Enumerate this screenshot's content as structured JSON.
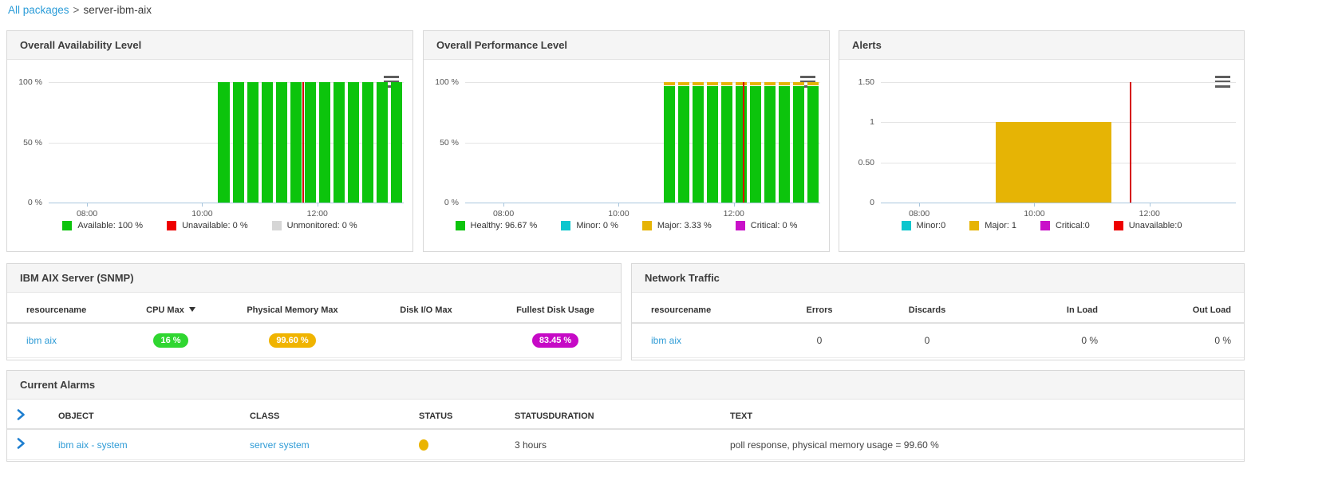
{
  "breadcrumb": {
    "link_label": "All packages",
    "separator": ">",
    "current": "server-ibm-aix"
  },
  "panels": {
    "availability": {
      "title": "Overall Availability Level"
    },
    "performance": {
      "title": "Overall Performance Level"
    },
    "alerts": {
      "title": "Alerts"
    },
    "snmp": {
      "title": "IBM AIX Server (SNMP)"
    },
    "network": {
      "title": "Network Traffic"
    },
    "alarms": {
      "title": "Current Alarms"
    }
  },
  "colors": {
    "green": "#0cc40c",
    "red": "#ee0000",
    "gray": "#d6d6d6",
    "gold": "#e6b405",
    "cyan": "#0cc6ce",
    "magenta": "#c911c9",
    "marker_red": "#d50000",
    "link_blue": "#2e9bd6"
  },
  "chart_data": [
    {
      "id": "availability",
      "type": "bar",
      "title": "Overall Availability Level",
      "x_axis": {
        "range": [
          "07:20",
          "13:30"
        ],
        "ticks": [
          "08:00",
          "10:00",
          "12:00"
        ]
      },
      "y_axis": {
        "range": [
          0,
          100
        ],
        "ticks": [
          {
            "value": 0,
            "label": "0 %"
          },
          {
            "value": 50,
            "label": "50 %"
          },
          {
            "value": 100,
            "label": "100 %"
          }
        ]
      },
      "bar_interval_minutes": 15,
      "bar_times": [
        "10:15",
        "10:30",
        "10:45",
        "11:00",
        "11:15",
        "11:30",
        "11:45",
        "12:00",
        "12:15",
        "12:30",
        "12:45",
        "13:00",
        "13:15"
      ],
      "series": [
        {
          "name": "Available",
          "color": "#0cc40c",
          "values": [
            100,
            100,
            100,
            100,
            100,
            100,
            100,
            100,
            100,
            100,
            100,
            100,
            100
          ]
        }
      ],
      "marker_time": "11:45",
      "marker_color": "#d50000",
      "legend": [
        {
          "label": "Available: 100 %",
          "color": "#0cc40c"
        },
        {
          "label": "Unavailable: 0 %",
          "color": "#ee0000"
        },
        {
          "label": "Unmonitored: 0 %",
          "color": "#d6d6d6"
        }
      ]
    },
    {
      "id": "performance",
      "type": "stacked-bar",
      "title": "Overall Performance Level",
      "x_axis": {
        "range": [
          "07:20",
          "13:30"
        ],
        "ticks": [
          "08:00",
          "10:00",
          "12:00"
        ]
      },
      "y_axis": {
        "range": [
          0,
          100
        ],
        "ticks": [
          {
            "value": 0,
            "label": "0 %"
          },
          {
            "value": 50,
            "label": "50 %"
          },
          {
            "value": 100,
            "label": "100 %"
          }
        ]
      },
      "bar_interval_minutes": 15,
      "bar_times": [
        "10:45",
        "11:00",
        "11:15",
        "11:30",
        "11:45",
        "12:00",
        "12:15",
        "12:30",
        "12:45",
        "13:00",
        "13:15"
      ],
      "series": [
        {
          "name": "Healthy",
          "color": "#0cc40c",
          "values": [
            96.67,
            96.67,
            96.67,
            96.67,
            96.67,
            96.67,
            96.67,
            96.67,
            96.67,
            96.67,
            96.67
          ]
        },
        {
          "name": "Major",
          "color": "#e6b405",
          "values": [
            3.33,
            3.33,
            3.33,
            3.33,
            3.33,
            3.33,
            3.33,
            3.33,
            3.33,
            3.33,
            3.33
          ]
        }
      ],
      "marker_time": "12:10",
      "marker_color": "#d50000",
      "legend": [
        {
          "label": "Healthy: 96.67 %",
          "color": "#0cc40c"
        },
        {
          "label": "Minor: 0 %",
          "color": "#0cc6ce"
        },
        {
          "label": "Major: 3.33 %",
          "color": "#e6b405"
        },
        {
          "label": "Critical: 0 %",
          "color": "#c911c9"
        }
      ]
    },
    {
      "id": "alerts",
      "type": "area",
      "title": "Alerts",
      "x_axis": {
        "range": [
          "07:20",
          "13:30"
        ],
        "ticks": [
          "08:00",
          "10:00",
          "12:00"
        ]
      },
      "y_axis": {
        "range": [
          0,
          1.5
        ],
        "ticks": [
          {
            "value": 0,
            "label": "0"
          },
          {
            "value": 0.5,
            "label": "0.50"
          },
          {
            "value": 1,
            "label": "1"
          },
          {
            "value": 1.5,
            "label": "1.50"
          }
        ]
      },
      "regions": [
        {
          "name": "Major",
          "from": "09:20",
          "to": "11:20",
          "value": 1,
          "color": "#e6b405"
        }
      ],
      "marker_time": "11:40",
      "marker_color": "#d50000",
      "legend": [
        {
          "label": "Minor:0",
          "color": "#0cc6ce"
        },
        {
          "label": "Major: 1",
          "color": "#e6b405"
        },
        {
          "label": "Critical:0",
          "color": "#c911c9"
        },
        {
          "label": "Unavailable:0",
          "color": "#ee0000"
        }
      ]
    }
  ],
  "tables": {
    "snmp": {
      "title": "IBM AIX Server (SNMP)",
      "headers": {
        "resourcename": "resourcename",
        "cpu": "CPU Max",
        "memory": "Physical Memory Max",
        "disk_io": "Disk I/O Max",
        "fullest_disk": "Fullest Disk Usage"
      },
      "sorted_column": "CPU Max",
      "sort_direction": "desc",
      "row": {
        "resourcename": "ibm aix",
        "cpu_max": {
          "text": "16 %",
          "color": "#2fd630"
        },
        "physical_memory_max": {
          "text": "99.60 %",
          "color": "#f0b400"
        },
        "disk_io_max": "",
        "fullest_disk_usage": {
          "text": "83.45 %",
          "color": "#c60ac6"
        }
      }
    },
    "network": {
      "title": "Network Traffic",
      "headers": {
        "resourcename": "resourcename",
        "errors": "Errors",
        "discards": "Discards",
        "in_load": "In Load",
        "out_load": "Out Load"
      },
      "row": {
        "resourcename": "ibm aix",
        "errors": "0",
        "discards": "0",
        "in_load": "0 %",
        "out_load": "0 %"
      }
    },
    "alarms": {
      "title": "Current Alarms",
      "headers": {
        "object": "OBJECT",
        "class": "CLASS",
        "status": "STATUS",
        "statusduration": "STATUSDURATION",
        "text": "TEXT"
      },
      "row": {
        "object": "ibm aix - system",
        "class": "server system",
        "status_color": "#eab400",
        "statusduration": "3 hours",
        "text": "poll response, physical memory usage = 99.60 %"
      }
    }
  }
}
